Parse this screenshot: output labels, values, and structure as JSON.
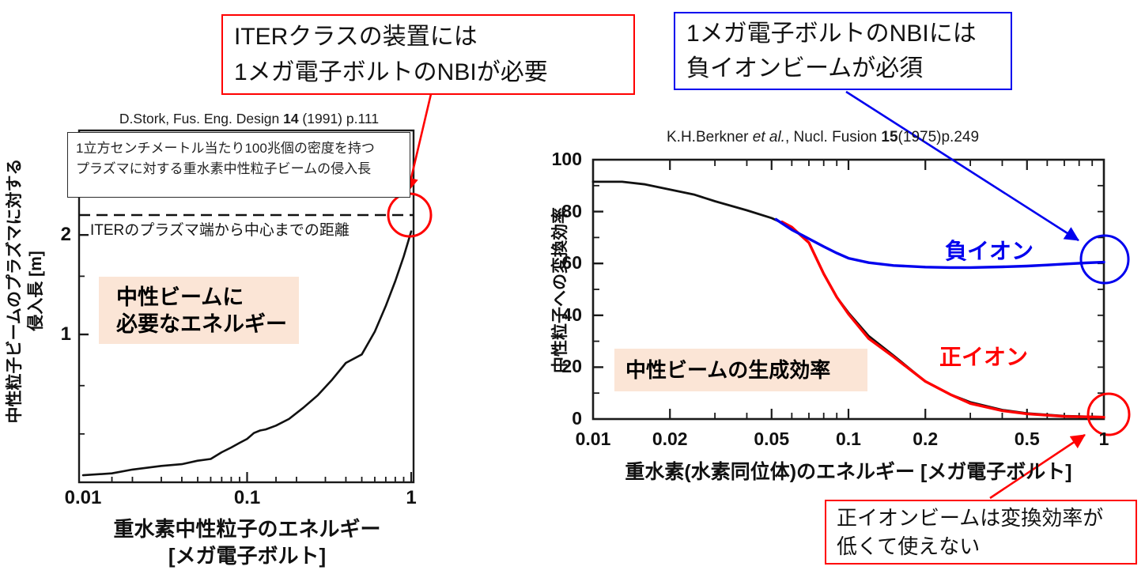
{
  "colors": {
    "red": "#FF0000",
    "blue": "#0000EE",
    "curve_black": "#111111",
    "highlight_bg": "#FBE5D6"
  },
  "annotations": {
    "iter_box": {
      "line1": "ITERクラスの装置には",
      "line2": "1メガ電子ボルトのNBIが必要"
    },
    "negative_ion_box": {
      "line1": "1メガ電子ボルトのNBIには",
      "line2": "負イオンビームが必須"
    },
    "positive_ion_box": {
      "line1": "正イオンビームは変換効率が",
      "line2": "低くて使えない"
    }
  },
  "left_chart": {
    "citation": {
      "pre": "D.Stork, Fus. Eng. Design ",
      "volume": "14",
      "post": " (1991) p.111"
    },
    "caption": {
      "line1": "1立方センチメートル当たり100兆個の密度を持つ",
      "line2": "プラズマに対する重水素中性粒子ビームの侵入長"
    },
    "dashed_line_label": "ITERのプラズマ端から中心までの距離",
    "highlight": {
      "line1": "中性ビームに",
      "line2": "必要なエネルギー"
    },
    "y_axis_label_line1": "中性粒子ビームのプラズマに対する",
    "y_axis_label_line2": "侵入長 [m]",
    "x_axis_label_line1": "重水素中性粒子のエネルギー",
    "x_axis_label_line2": "[メガ電子ボルト]",
    "x_ticks": [
      {
        "label": "0.01",
        "value": 0.01
      },
      {
        "label": "0.1",
        "value": 0.1
      },
      {
        "label": "1",
        "value": 1
      }
    ],
    "y_ticks": [
      {
        "label": "1",
        "value": 1
      },
      {
        "label": "2",
        "value": 2
      }
    ]
  },
  "right_chart": {
    "citation": {
      "pre": "K.H.Berkner ",
      "etal": "et al.",
      "mid": ", Nucl. Fusion ",
      "volume": "15",
      "post": "(1975)p.249"
    },
    "highlight": {
      "line1": "中性ビームの生成効率"
    },
    "series_labels": {
      "negative": "負イオン",
      "positive": "正イオン"
    },
    "y_axis_label": "中性粒子への変換効率",
    "x_axis_label": "重水素(水素同位体)のエネルギー [メガ電子ボルト]",
    "x_ticks": [
      {
        "label": "0.01",
        "value": 0.01
      },
      {
        "label": "0.02",
        "value": 0.02
      },
      {
        "label": "0.05",
        "value": 0.05
      },
      {
        "label": "0.1",
        "value": 0.1
      },
      {
        "label": "0.2",
        "value": 0.2
      },
      {
        "label": "0.5",
        "value": 0.5
      },
      {
        "label": "1",
        "value": 1
      }
    ],
    "y_ticks": [
      {
        "label": "0",
        "value": 0
      },
      {
        "label": "20",
        "value": 20
      },
      {
        "label": "40",
        "value": 40
      },
      {
        "label": "60",
        "value": 60
      },
      {
        "label": "80",
        "value": 80
      },
      {
        "label": "100",
        "value": 100
      }
    ]
  },
  "chart_data": [
    {
      "type": "line",
      "title": "中性ビームに必要なエネルギー",
      "citation": "D.Stork, Fus. Eng. Design 14 (1991) p.111",
      "xlabel": "重水素中性粒子のエネルギー [メガ電子ボルト]",
      "ylabel": "中性粒子ビームのプラズマに対する侵入長 [m]",
      "xscale": "log",
      "yscale": "log",
      "xlim": [
        0.01,
        1
      ],
      "ylim_px_calibration": "y=1m and y=2m labeled",
      "grid": false,
      "reference_line": {
        "value_m": 2.3,
        "style": "dashed",
        "label": "ITERのプラズマ端から中心までの距離"
      },
      "series": [
        {
          "name": "重水素中性粒子ビームの侵入長",
          "color": "#111111",
          "x": [
            0.01,
            0.015,
            0.02,
            0.03,
            0.04,
            0.05,
            0.06,
            0.07,
            0.08,
            0.09,
            0.1,
            0.11,
            0.12,
            0.13,
            0.15,
            0.18,
            0.22,
            0.27,
            0.33,
            0.4,
            0.5,
            0.6,
            0.7,
            0.8,
            0.9,
            1.0
          ],
          "y": [
            0.375,
            0.38,
            0.39,
            0.4,
            0.405,
            0.415,
            0.42,
            0.44,
            0.455,
            0.47,
            0.483,
            0.503,
            0.512,
            0.516,
            0.53,
            0.555,
            0.6,
            0.655,
            0.73,
            0.82,
            0.87,
            1.02,
            1.22,
            1.45,
            1.72,
            2.05
          ]
        }
      ]
    },
    {
      "type": "line",
      "title": "中性ビームの生成効率",
      "citation": "K.H.Berkner et al., Nucl. Fusion 15(1975)p.249",
      "xlabel": "重水素(水素同位体)のエネルギー [メガ電子ボルト]",
      "ylabel": "中性粒子への変換効率",
      "xscale": "log",
      "yscale": "linear",
      "xlim": [
        0.01,
        1
      ],
      "ylim": [
        0,
        100
      ],
      "grid": false,
      "series": [
        {
          "name": "変換効率(共通・黒)",
          "color": "#111111",
          "x": [
            0.01,
            0.013,
            0.016,
            0.02,
            0.025,
            0.03,
            0.04,
            0.05,
            0.06,
            0.07,
            0.08,
            0.09,
            0.1,
            0.12,
            0.15,
            0.2,
            0.25,
            0.3,
            0.4,
            0.5,
            0.7,
            1.0
          ],
          "y": [
            91.5,
            91.5,
            90.5,
            88.5,
            86.5,
            84,
            80.5,
            77.5,
            74,
            68,
            56,
            47,
            41,
            32,
            24.5,
            14.5,
            9.5,
            6.5,
            3.5,
            2.2,
            1.2,
            0.8
          ]
        },
        {
          "name": "正イオン",
          "color": "#FF0000",
          "x": [
            0.055,
            0.06,
            0.07,
            0.08,
            0.09,
            0.1,
            0.12,
            0.15,
            0.2,
            0.25,
            0.3,
            0.4,
            0.5,
            0.7,
            1.0
          ],
          "y": [
            76,
            74,
            68,
            56,
            47,
            40.5,
            31,
            24,
            14.5,
            9.5,
            6,
            3.2,
            2,
            1,
            0.7
          ]
        },
        {
          "name": "負イオン",
          "color": "#0000EE",
          "x": [
            0.052,
            0.06,
            0.07,
            0.08,
            0.09,
            0.1,
            0.12,
            0.15,
            0.2,
            0.25,
            0.3,
            0.4,
            0.5,
            0.6,
            0.7,
            0.85,
            1.0
          ],
          "y": [
            77,
            73,
            69.5,
            66.5,
            64,
            62,
            60.3,
            59.2,
            58.6,
            58.4,
            58.4,
            58.7,
            59,
            59.4,
            59.8,
            60.2,
            60.5
          ]
        }
      ]
    }
  ]
}
